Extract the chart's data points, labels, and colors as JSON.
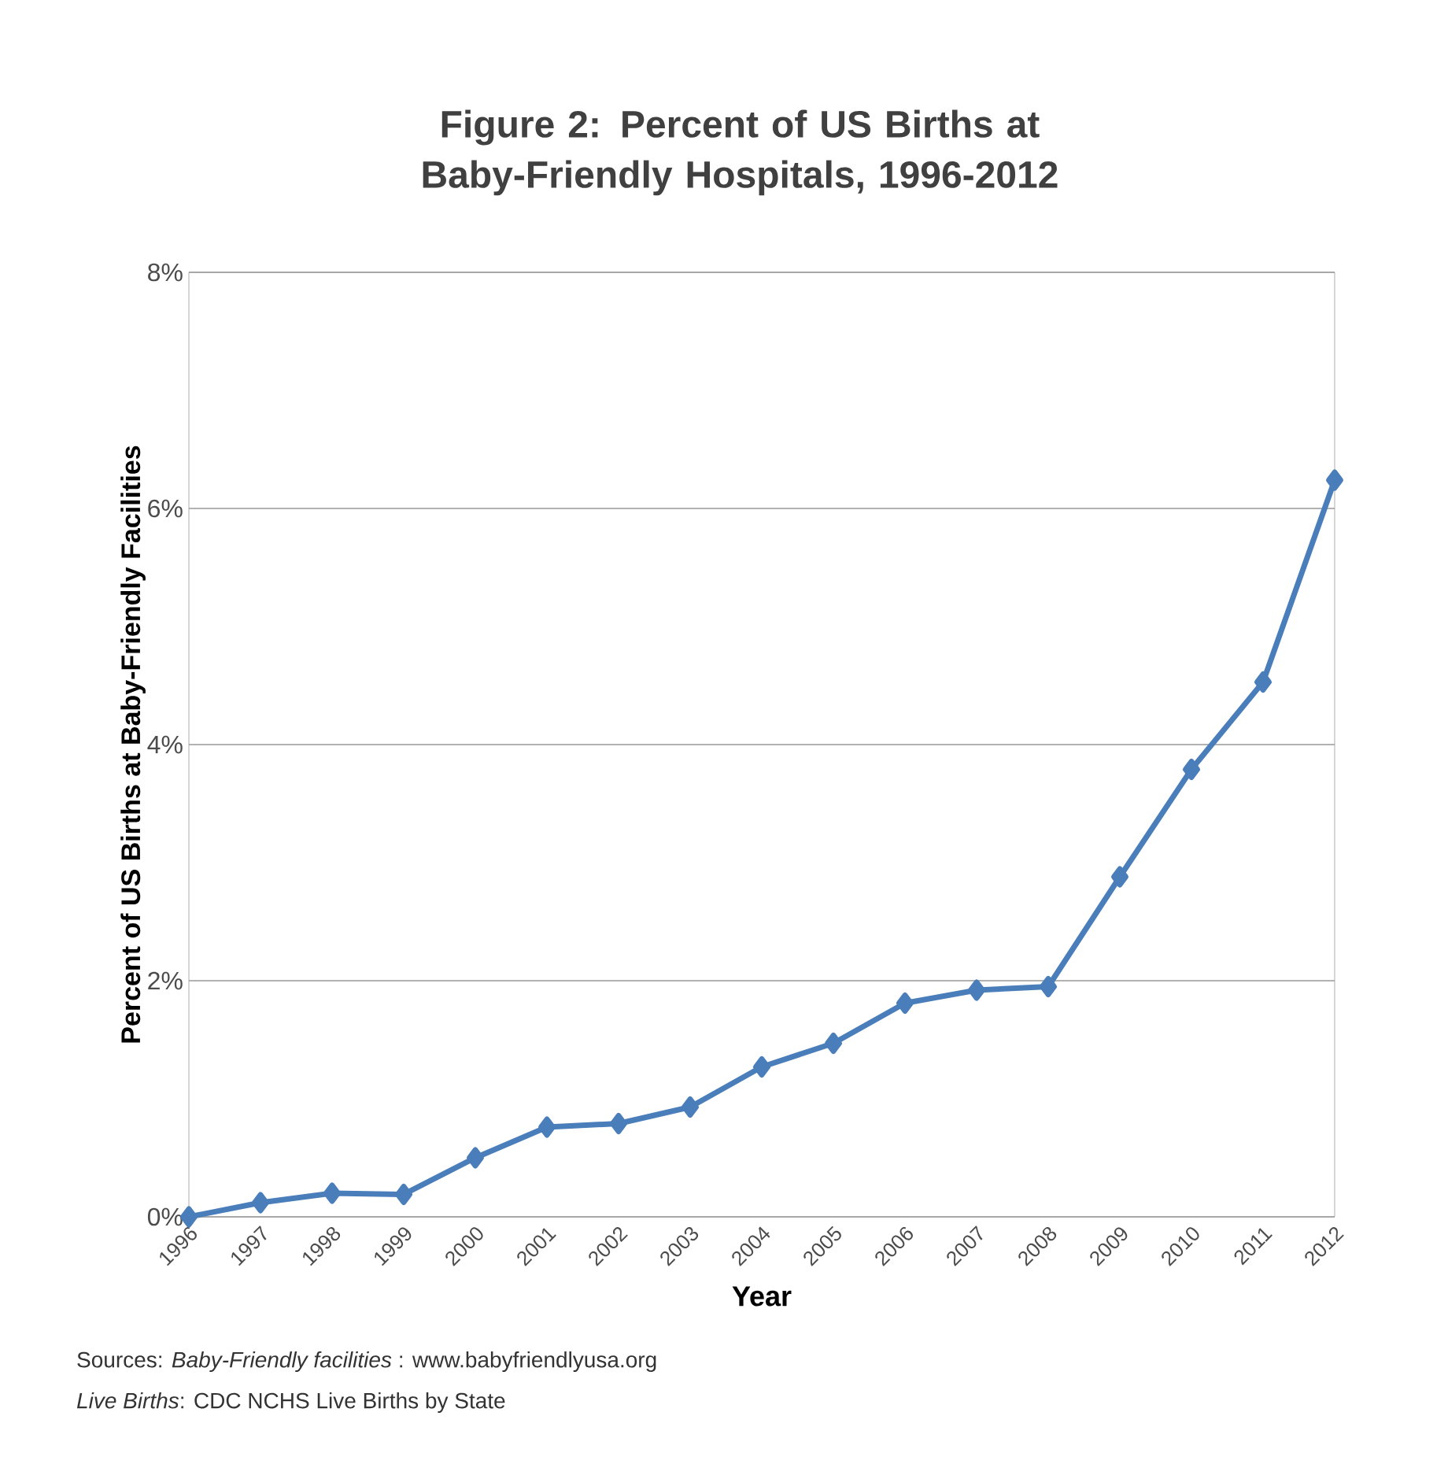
{
  "chart_data": {
    "type": "line",
    "title": "Figure 2: Percent of US Births at Baby-Friendly Hospitals, 1996-2012",
    "xlabel": "Year",
    "ylabel": "Percent of US Births at Baby-Friendly Facilities",
    "categories": [
      "1996",
      "1997",
      "1998",
      "1999",
      "2000",
      "2001",
      "2002",
      "2003",
      "2004",
      "2005",
      "2006",
      "2007",
      "2008",
      "2009",
      "2010",
      "2011",
      "2012"
    ],
    "series": [
      {
        "color": "#4a7ebb",
        "values": [
          0.0,
          0.12,
          0.2,
          0.19,
          0.5,
          0.76,
          0.79,
          0.93,
          1.27,
          1.47,
          1.81,
          1.92,
          1.95,
          2.88,
          3.79,
          4.53,
          6.24
        ]
      }
    ],
    "ylim": [
      0,
      8
    ],
    "yticks": [
      {
        "value": 0,
        "label": "0%"
      },
      {
        "value": 2,
        "label": "2%"
      },
      {
        "value": 4,
        "label": "4%"
      },
      {
        "value": 6,
        "label": "6%"
      },
      {
        "value": 8,
        "label": "8%"
      }
    ],
    "grid": "y",
    "marker": "diamond",
    "line_style": "solid",
    "annotations": [
      "Sources: *Baby-Friendly facilities* : www.babyfriendlyusa.org",
      "*Live Births*: CDC NCHS Live Births by State"
    ]
  }
}
